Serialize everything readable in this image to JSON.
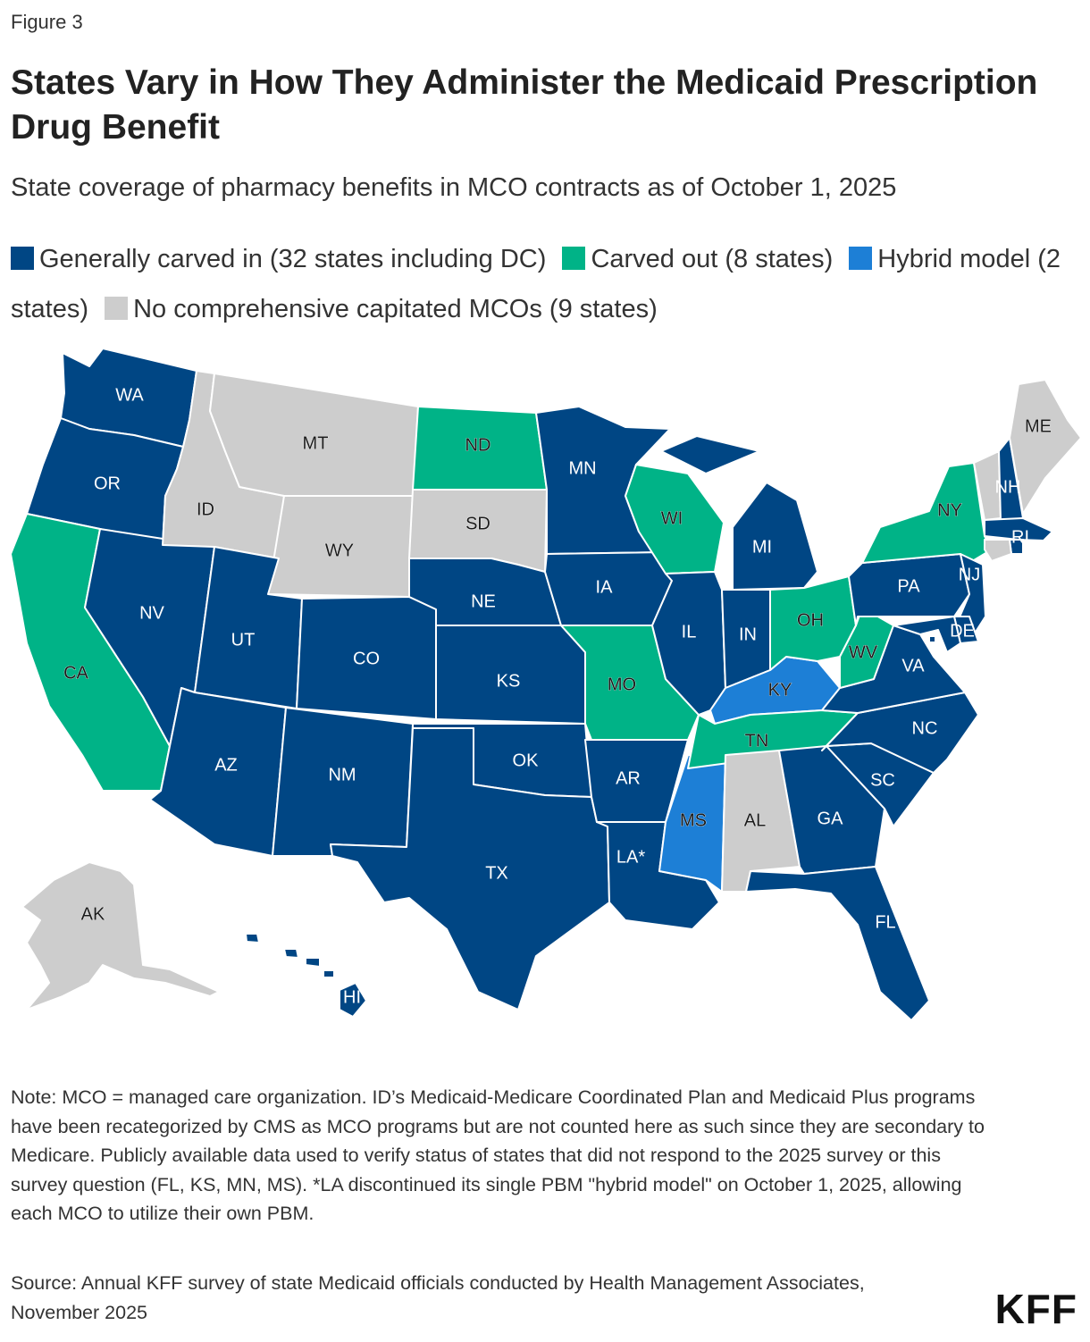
{
  "figure_label": "Figure 3",
  "title": "States Vary in How They Administer the Medicaid Prescription Drug Benefit",
  "subtitle": "State coverage of pharmacy benefits in MCO contracts as of October 1, 2025",
  "legend": [
    {
      "label": "Generally carved in (32 states including DC)",
      "color": "#004684"
    },
    {
      "label": "Carved out (8 states)",
      "color": "#00b387"
    },
    {
      "label": "Hybrid model (2 states)",
      "color": "#1d7fd6"
    },
    {
      "label": "No comprehensive capitated MCOs (9 states)",
      "color": "#cdcdcd"
    }
  ],
  "chart_data": {
    "type": "choropleth",
    "categories": {
      "carved_in": {
        "label": "Generally carved in (32 states including DC)",
        "color": "#004684"
      },
      "carved_out": {
        "label": "Carved out (8 states)",
        "color": "#00b387"
      },
      "hybrid": {
        "label": "Hybrid model (2 states)",
        "color": "#1d7fd6"
      },
      "none": {
        "label": "No comprehensive capitated MCOs (9 states)",
        "color": "#cdcdcd"
      }
    },
    "states": [
      {
        "label": "WA",
        "category": "carved_in"
      },
      {
        "label": "OR",
        "category": "carved_in"
      },
      {
        "label": "CA",
        "category": "carved_out"
      },
      {
        "label": "NV",
        "category": "carved_in"
      },
      {
        "label": "ID",
        "category": "none"
      },
      {
        "label": "MT",
        "category": "none"
      },
      {
        "label": "WY",
        "category": "none"
      },
      {
        "label": "UT",
        "category": "carved_in"
      },
      {
        "label": "AZ",
        "category": "carved_in"
      },
      {
        "label": "CO",
        "category": "carved_in"
      },
      {
        "label": "NM",
        "category": "carved_in"
      },
      {
        "label": "ND",
        "category": "carved_out"
      },
      {
        "label": "SD",
        "category": "none"
      },
      {
        "label": "NE",
        "category": "carved_in"
      },
      {
        "label": "KS",
        "category": "carved_in"
      },
      {
        "label": "OK",
        "category": "carved_in"
      },
      {
        "label": "TX",
        "category": "carved_in"
      },
      {
        "label": "MN",
        "category": "carved_in"
      },
      {
        "label": "IA",
        "category": "carved_in"
      },
      {
        "label": "MO",
        "category": "carved_out"
      },
      {
        "label": "AR",
        "category": "carved_in"
      },
      {
        "label": "LA*",
        "category": "carved_in"
      },
      {
        "label": "WI",
        "category": "carved_out"
      },
      {
        "label": "IL",
        "category": "carved_in"
      },
      {
        "label": "MS",
        "category": "hybrid"
      },
      {
        "label": "MI",
        "category": "carved_in"
      },
      {
        "label": "IN",
        "category": "carved_in"
      },
      {
        "label": "KY",
        "category": "hybrid"
      },
      {
        "label": "TN",
        "category": "carved_out"
      },
      {
        "label": "AL",
        "category": "none"
      },
      {
        "label": "OH",
        "category": "carved_out"
      },
      {
        "label": "GA",
        "category": "carved_in"
      },
      {
        "label": "FL",
        "category": "carved_in"
      },
      {
        "label": "SC",
        "category": "carved_in"
      },
      {
        "label": "NC",
        "category": "carved_in"
      },
      {
        "label": "VA",
        "category": "carved_in"
      },
      {
        "label": "WV",
        "category": "carved_out"
      },
      {
        "label": "PA",
        "category": "carved_in"
      },
      {
        "label": "NY",
        "category": "carved_out"
      },
      {
        "label": "NJ",
        "category": "carved_in"
      },
      {
        "label": "DE",
        "category": "carved_in"
      },
      {
        "label": "MD",
        "category": "carved_in"
      },
      {
        "label": "DC",
        "category": "carved_in"
      },
      {
        "label": "VT",
        "category": "none"
      },
      {
        "label": "NH",
        "category": "carved_in"
      },
      {
        "label": "ME",
        "category": "none"
      },
      {
        "label": "MA",
        "category": "carved_in"
      },
      {
        "label": "RI",
        "category": "carved_in"
      },
      {
        "label": "CT",
        "category": "none"
      },
      {
        "label": "AK",
        "category": "none"
      },
      {
        "label": "HI",
        "category": "carved_in"
      }
    ]
  },
  "note": "Note: MCO = managed care organization. ID’s Medicaid-Medicare Coordinated Plan and Medicaid Plus programs have been recategorized by CMS as MCO programs but are not counted here as such since they are secondary to Medicare. Publicly available data used to verify status of states that did not respond to the 2025 survey or this survey question (FL, KS, MN, MS). *LA discontinued its single PBM \"hybrid model\" on October 1, 2025, allowing each MCO to utilize their own PBM.",
  "source": "Source: Annual KFF survey of state Medicaid officials conducted by Health Management Associates, November 2025",
  "logo": "KFF"
}
